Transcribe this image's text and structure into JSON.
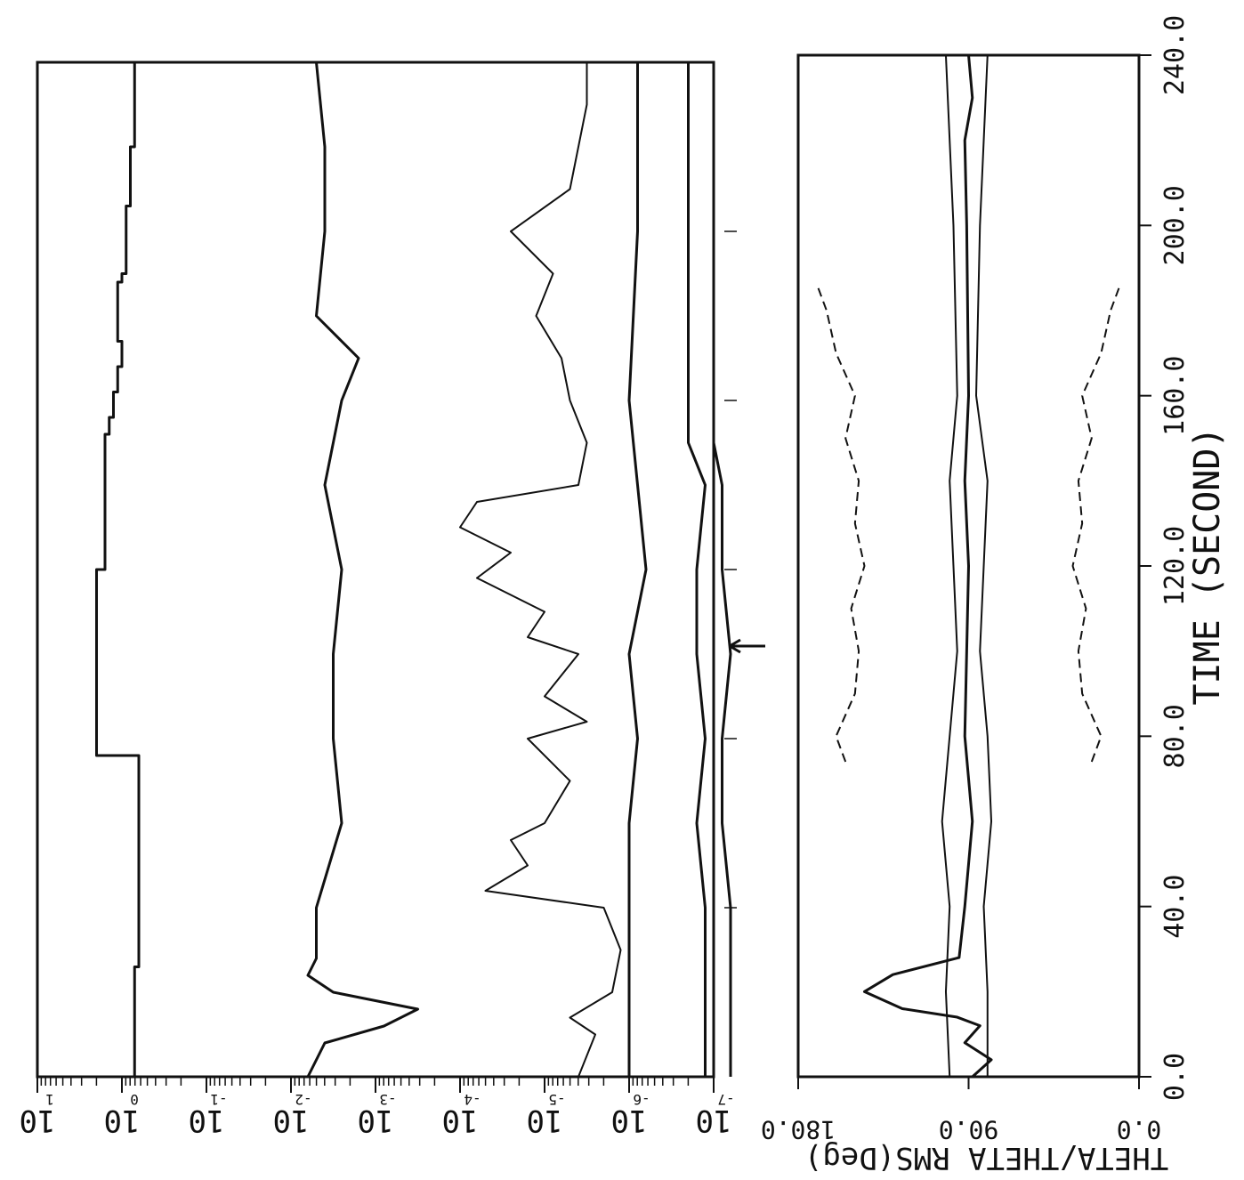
{
  "chart_data": [
    {
      "type": "line",
      "panel": "left",
      "scale": "log",
      "orientation": "rotated-90-cw",
      "x_axis_shared": "TIME (SECOND)",
      "xlim": [
        0,
        240
      ],
      "x_ticks": [
        40,
        80,
        120,
        160,
        200
      ],
      "ylim_exponent": [
        -7,
        1
      ],
      "tick_exponents": [
        1,
        0,
        -1,
        -2,
        -3,
        -4,
        -5,
        -6,
        -7
      ],
      "tick_labels": [
        "10",
        "10",
        "10",
        "10",
        "10",
        "10",
        "10",
        "10",
        "10"
      ],
      "tick_superscripts": [
        "1",
        "0",
        "-1",
        "-2",
        "-3",
        "-4",
        "-5",
        "-6",
        "-7"
      ],
      "series": [
        {
          "key": "step",
          "style": "solid",
          "x": [
            0,
            5,
            26,
            36,
            72,
            76,
            116,
            120,
            144,
            152,
            156,
            162,
            168,
            174,
            188,
            190,
            204,
            206,
            216,
            220,
            240
          ],
          "y": [
            -0.15,
            -0.15,
            -0.2,
            -0.2,
            -0.2,
            0.3,
            0.3,
            0.2,
            0.2,
            0.15,
            0.1,
            0.05,
            0.0,
            0.05,
            0.0,
            -0.05,
            -0.05,
            -0.1,
            -0.1,
            -0.15,
            -0.15
          ]
        },
        {
          "key": "upper",
          "style": "solid",
          "x": [
            0,
            4,
            8,
            12,
            16,
            20,
            24,
            28,
            40,
            60,
            80,
            100,
            120,
            140,
            160,
            170,
            180,
            200,
            220,
            240
          ],
          "y": [
            -2.2,
            -2.3,
            -2.4,
            -3.1,
            -3.5,
            -2.5,
            -2.2,
            -2.3,
            -2.3,
            -2.6,
            -2.5,
            -2.5,
            -2.6,
            -2.4,
            -2.6,
            -2.8,
            -2.3,
            -2.4,
            -2.4,
            -2.3
          ]
        },
        {
          "key": "mid",
          "style": "solid",
          "x": [
            0,
            10,
            14,
            20,
            30,
            40,
            44,
            50,
            56,
            60,
            70,
            80,
            84,
            90,
            100,
            104,
            110,
            118,
            124,
            130,
            136,
            140,
            150,
            160,
            170,
            180,
            190,
            200,
            210,
            220,
            230,
            240
          ],
          "y": [
            -5.4,
            -5.6,
            -5.3,
            -5.8,
            -5.9,
            -5.7,
            -4.3,
            -4.8,
            -4.6,
            -5.0,
            -5.3,
            -4.8,
            -5.5,
            -5.0,
            -5.4,
            -4.8,
            -5.0,
            -4.2,
            -4.6,
            -4.0,
            -4.2,
            -5.4,
            -5.5,
            -5.3,
            -5.2,
            -4.9,
            -5.1,
            -4.6,
            -5.3,
            -5.4,
            -5.5,
            -5.5
          ]
        },
        {
          "key": "level5",
          "style": "solid",
          "x": [
            0,
            20,
            40,
            60,
            80,
            100,
            120,
            140,
            160,
            200,
            240
          ],
          "y": [
            -6.0,
            -6.0,
            -6.0,
            -6.0,
            -6.1,
            -6.0,
            -6.2,
            -6.1,
            -6.0,
            -6.1,
            -6.1
          ]
        },
        {
          "key": "level6",
          "style": "solid",
          "x": [
            0,
            20,
            40,
            60,
            80,
            100,
            120,
            140,
            150,
            170,
            200,
            240
          ],
          "y": [
            -6.9,
            -6.9,
            -6.9,
            -6.8,
            -6.9,
            -6.8,
            -6.8,
            -6.9,
            -6.7,
            -6.7,
            -6.7,
            -6.7
          ]
        },
        {
          "key": "level7",
          "style": "solid",
          "x": [
            0,
            20,
            40,
            60,
            80,
            100,
            120,
            140,
            150,
            170,
            200,
            240
          ],
          "y": [
            -7.2,
            -7.2,
            -7.2,
            -7.1,
            -7.1,
            -7.2,
            -7.1,
            -7.1,
            -7.0,
            -7.0,
            -7.0,
            -7.0
          ]
        }
      ]
    },
    {
      "type": "line",
      "panel": "right",
      "orientation": "rotated-90-cw",
      "xlabel": "TIME (SECOND)",
      "ylabel": "THETA/THETA RMS(Deg)",
      "xlim": [
        0,
        240
      ],
      "ylim": [
        0,
        180
      ],
      "x_ticks": [
        0,
        40,
        80,
        120,
        160,
        200,
        240
      ],
      "x_tick_labels": [
        "0.0",
        "40.0",
        "80.0",
        "120.0",
        "160.0",
        "200.0",
        "240.0"
      ],
      "y_ticks": [
        0,
        90,
        180
      ],
      "y_tick_labels": [
        "0.0",
        "90.0",
        "180.0"
      ],
      "series": [
        {
          "key": "theta",
          "style": "solid",
          "x": [
            0,
            4,
            8,
            12,
            14,
            16,
            20,
            24,
            28,
            40,
            60,
            80,
            100,
            120,
            140,
            160,
            200,
            220,
            230,
            240
          ],
          "y": [
            88,
            78,
            92,
            84,
            96,
            125,
            145,
            130,
            95,
            92,
            88,
            92,
            91,
            90,
            92,
            90,
            91,
            92,
            88,
            90
          ]
        },
        {
          "key": "rms_plus",
          "style": "solid",
          "x": [
            0,
            20,
            40,
            60,
            80,
            100,
            120,
            140,
            160,
            200,
            240
          ],
          "y": [
            80,
            80,
            82,
            78,
            80,
            84,
            82,
            80,
            86,
            84,
            80
          ]
        },
        {
          "key": "rms_minus",
          "style": "solid",
          "x": [
            0,
            20,
            40,
            60,
            80,
            100,
            120,
            140,
            160,
            200,
            240
          ],
          "y": [
            100,
            102,
            100,
            104,
            100,
            96,
            98,
            100,
            96,
            98,
            102
          ]
        },
        {
          "key": "dash_upper",
          "style": "dashed",
          "x": [
            74,
            80,
            90,
            100,
            110,
            120,
            130,
            140,
            150,
            160,
            170,
            180,
            186
          ],
          "y": [
            155,
            160,
            150,
            148,
            152,
            145,
            150,
            148,
            155,
            150,
            160,
            165,
            170
          ]
        },
        {
          "key": "dash_lower",
          "style": "dashed",
          "x": [
            74,
            80,
            90,
            100,
            110,
            120,
            130,
            140,
            150,
            160,
            170,
            180,
            186
          ],
          "y": [
            25,
            20,
            30,
            32,
            28,
            35,
            30,
            32,
            25,
            30,
            20,
            15,
            10
          ]
        }
      ]
    }
  ]
}
